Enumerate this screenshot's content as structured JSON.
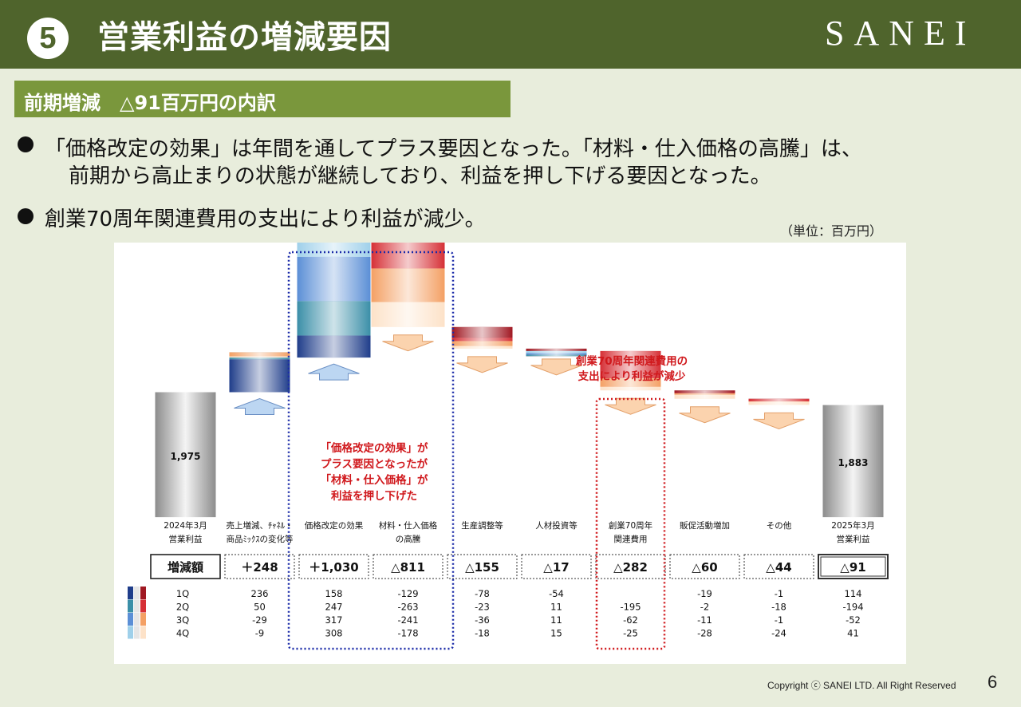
{
  "header": {
    "section_number": "5",
    "title": "営業利益の増減要因",
    "logo": "SANEI"
  },
  "subtitle": "前期増減　△91百万円の内訳",
  "bullets": [
    {
      "line1": "「価格改定の効果」は年間を通してプラス要因となった。「材料・仕入価格の高騰」は、",
      "line2": "前期から高止まりの状態が継続しており、利益を押し下げる要因となった。"
    },
    {
      "line1": "創業70周年関連費用の支出により利益が減少。",
      "line2": ""
    }
  ],
  "unit": "（単位：百万円）",
  "chart_data": {
    "type": "bar",
    "subtype": "waterfall",
    "quarter_labels": [
      "1Q",
      "2Q",
      "3Q",
      "4Q"
    ],
    "total_label": "増減額",
    "categories": [
      {
        "label1": "2024年3月",
        "label2": "営業利益",
        "kind": "total",
        "value": 1975,
        "value_text": "1,975",
        "change_text": "",
        "quarters": [
          "",
          "",
          "",
          ""
        ]
      },
      {
        "label1": "売上増減、ﾁｬﾈﾙ・",
        "label2": "商品ﾐｯｸｽの変化等",
        "kind": "delta",
        "value": 248,
        "change_text": "＋248",
        "quarters": [
          "236",
          "50",
          "-29",
          "-9"
        ]
      },
      {
        "label1": "価格改定の効果",
        "label2": "",
        "kind": "delta",
        "value": 1030,
        "change_text": "＋1,030",
        "quarters": [
          "158",
          "247",
          "317",
          "308"
        ]
      },
      {
        "label1": "材料・仕入価格",
        "label2": "の高騰",
        "kind": "delta",
        "value": -811,
        "change_text": "△811",
        "quarters": [
          "-129",
          "-263",
          "-241",
          "-178"
        ]
      },
      {
        "label1": "生産調整等",
        "label2": "",
        "kind": "delta",
        "value": -155,
        "change_text": "△155",
        "quarters": [
          "-78",
          "-23",
          "-36",
          "-18"
        ]
      },
      {
        "label1": "人材投資等",
        "label2": "",
        "kind": "delta",
        "value": -17,
        "change_text": "△17",
        "quarters": [
          "-54",
          "11",
          "11",
          "15"
        ]
      },
      {
        "label1": "創業70周年",
        "label2": "関連費用",
        "kind": "delta",
        "value": -282,
        "change_text": "△282",
        "quarters": [
          "",
          "-195",
          "-62",
          "-25"
        ]
      },
      {
        "label1": "販促活動増加",
        "label2": "",
        "kind": "delta",
        "value": -60,
        "change_text": "△60",
        "quarters": [
          "-19",
          "-2",
          "-11",
          "-28"
        ]
      },
      {
        "label1": "その他",
        "label2": "",
        "kind": "delta",
        "value": -44,
        "change_text": "△44",
        "quarters": [
          "-1",
          "-18",
          "-1",
          "-24"
        ]
      },
      {
        "label1": "2025年3月",
        "label2": "営業利益",
        "kind": "total",
        "value": 1883,
        "value_text": "1,883",
        "change_text": "△91",
        "quarters": [
          "114",
          "-194",
          "-52",
          "41"
        ]
      }
    ],
    "annotations": {
      "price_note": [
        "「価格改定の効果」が",
        "プラス要因となったが",
        "「材料・仕入価格」が",
        "利益を押し下げた"
      ],
      "anniversary_note": [
        "創業70周年関連費用の",
        "支出により利益が減少"
      ]
    },
    "colors": {
      "positive_q": [
        "#1f3d8a",
        "#3b8fa8",
        "#5b8fd6",
        "#9fd0ea"
      ],
      "negative_q": [
        "#a01822",
        "#d63036",
        "#f4a064",
        "#fde2c8"
      ],
      "total": "#8c8c8c",
      "accent_blue": "#1a2aa8",
      "accent_red": "#d0181c"
    }
  },
  "footer": {
    "copyright": "Copyright ⓒ SANEI LTD. All Right Reserved",
    "page": "6"
  }
}
